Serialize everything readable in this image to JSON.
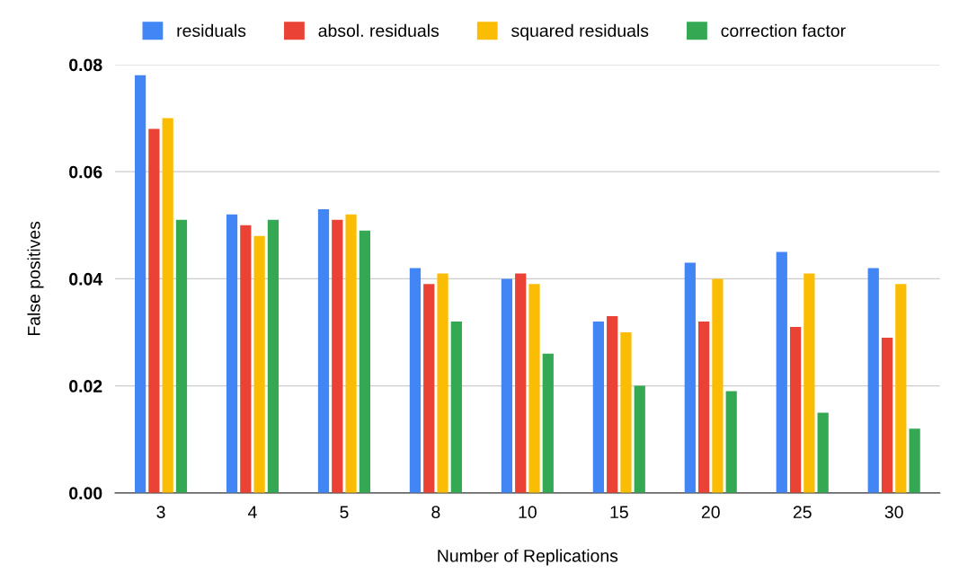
{
  "chart_data": {
    "type": "bar",
    "xlabel": "Number of Replications",
    "ylabel": "False positives",
    "categories": [
      "3",
      "4",
      "5",
      "8",
      "10",
      "15",
      "20",
      "25",
      "30"
    ],
    "series": [
      {
        "name": "residuals",
        "color": "#4285f4",
        "values": [
          0.078,
          0.052,
          0.053,
          0.042,
          0.04,
          0.032,
          0.043,
          0.045,
          0.042
        ]
      },
      {
        "name": "absol. residuals",
        "color": "#ea4335",
        "values": [
          0.068,
          0.05,
          0.051,
          0.039,
          0.041,
          0.033,
          0.032,
          0.031,
          0.029
        ]
      },
      {
        "name": "squared residuals",
        "color": "#fbbc04",
        "values": [
          0.07,
          0.048,
          0.052,
          0.041,
          0.039,
          0.03,
          0.04,
          0.041,
          0.039
        ]
      },
      {
        "name": "correction factor",
        "color": "#34a853",
        "values": [
          0.051,
          0.051,
          0.049,
          0.032,
          0.026,
          0.02,
          0.019,
          0.015,
          0.012
        ]
      }
    ],
    "ylim": [
      0,
      0.08
    ],
    "yticks": [
      {
        "value": 0,
        "label": "0.00"
      },
      {
        "value": 0.02,
        "label": "0.02"
      },
      {
        "value": 0.04,
        "label": "0.04"
      },
      {
        "value": 0.06,
        "label": "0.06"
      },
      {
        "value": 0.08,
        "label": "0.08"
      }
    ],
    "grid": "y",
    "legend": "top"
  }
}
